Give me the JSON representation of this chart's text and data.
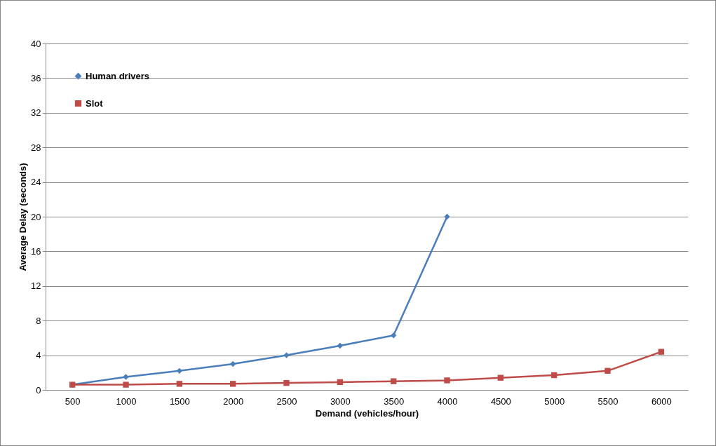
{
  "chart_data": {
    "type": "line",
    "xlabel": "Demand (vehicles/hour)",
    "ylabel": "Average Delay (seconds)",
    "categories": [
      "500",
      "1000",
      "1500",
      "2000",
      "2500",
      "3000",
      "3500",
      "4000",
      "4500",
      "5000",
      "5500",
      "6000"
    ],
    "series": [
      {
        "name": "Human drivers",
        "color": "#4a7ebb",
        "marker": "diamond",
        "values": [
          0.6,
          1.5,
          2.2,
          3.0,
          4.0,
          5.1,
          6.3,
          20,
          null,
          null,
          null,
          null
        ]
      },
      {
        "name": "Slot",
        "color": "#be4b48",
        "marker": "square",
        "values": [
          0.6,
          0.6,
          0.7,
          0.7,
          0.8,
          0.9,
          1.0,
          1.1,
          1.4,
          1.7,
          2.2,
          4.4
        ]
      }
    ],
    "ylim": [
      0,
      40
    ],
    "yticks": [
      0,
      4,
      8,
      12,
      16,
      20,
      24,
      28,
      32,
      36,
      40
    ],
    "grid": "y",
    "legend": "top left"
  }
}
